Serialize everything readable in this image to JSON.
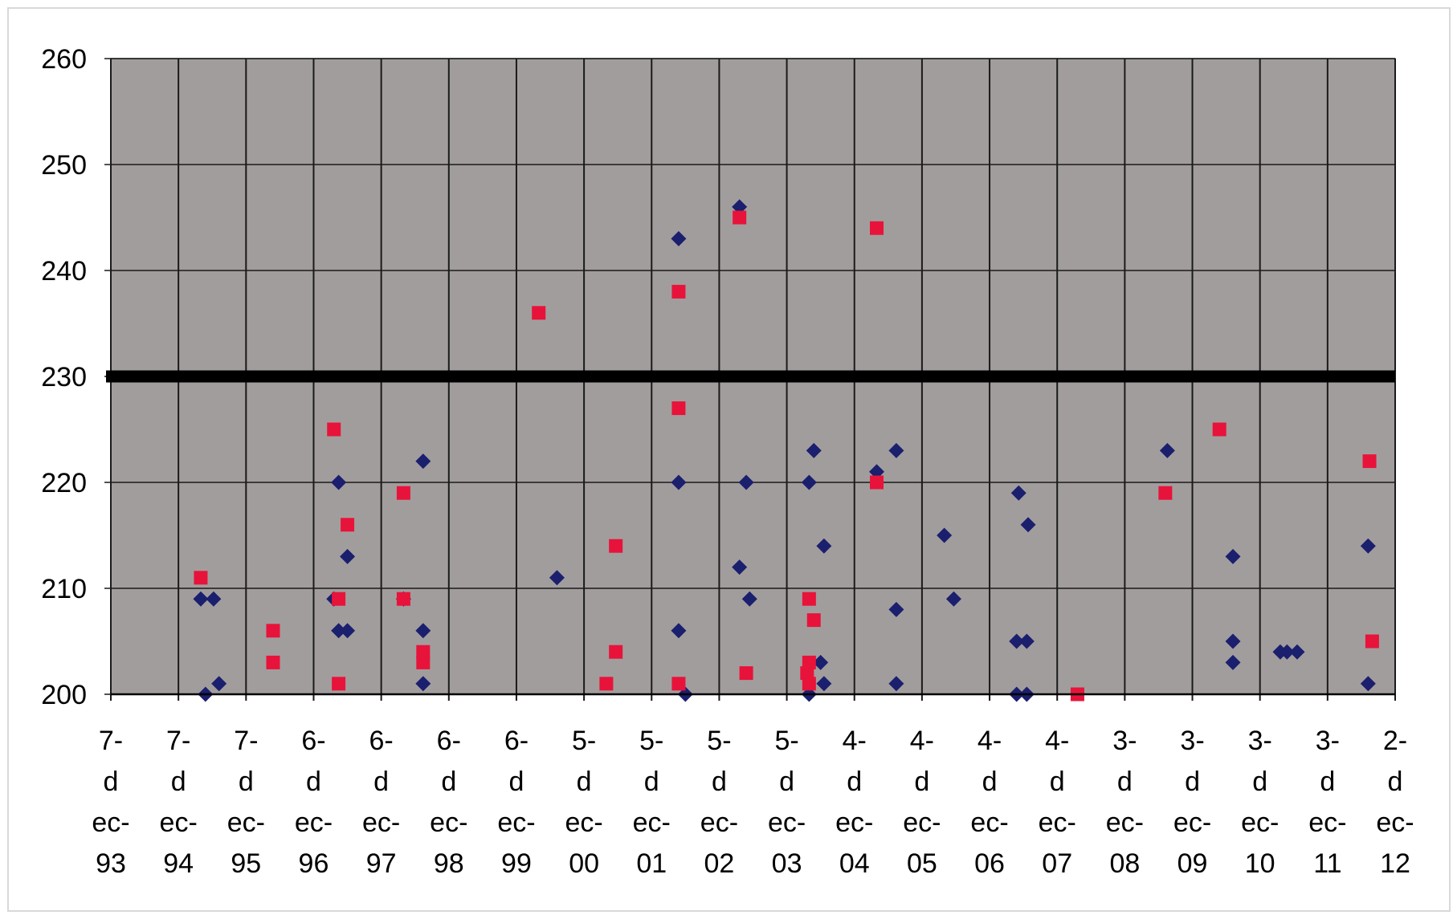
{
  "chart_data": {
    "type": "scatter",
    "title": "",
    "xlabel": "",
    "ylabel": "",
    "ylim": [
      200,
      260
    ],
    "yticks": [
      200,
      210,
      220,
      230,
      240,
      250,
      260
    ],
    "grid": true,
    "legend": "none",
    "plot_background": "#a29d9d",
    "threshold": {
      "value": 230,
      "color": "#000000"
    },
    "x_ticks": [
      {
        "lines": [
          "7-",
          "d",
          "ec-",
          "93"
        ]
      },
      {
        "lines": [
          "7-",
          "d",
          "ec-",
          "94"
        ]
      },
      {
        "lines": [
          "7-",
          "d",
          "ec-",
          "95"
        ]
      },
      {
        "lines": [
          "6-",
          "d",
          "ec-",
          "96"
        ]
      },
      {
        "lines": [
          "6-",
          "d",
          "ec-",
          "97"
        ]
      },
      {
        "lines": [
          "6-",
          "d",
          "ec-",
          "98"
        ]
      },
      {
        "lines": [
          "6-",
          "d",
          "ec-",
          "99"
        ]
      },
      {
        "lines": [
          "5-",
          "d",
          "ec-",
          "00"
        ]
      },
      {
        "lines": [
          "5-",
          "d",
          "ec-",
          "01"
        ]
      },
      {
        "lines": [
          "5-",
          "d",
          "ec-",
          "02"
        ]
      },
      {
        "lines": [
          "5-",
          "d",
          "ec-",
          "03"
        ]
      },
      {
        "lines": [
          "4-",
          "d",
          "ec-",
          "04"
        ]
      },
      {
        "lines": [
          "4-",
          "d",
          "ec-",
          "05"
        ]
      },
      {
        "lines": [
          "4-",
          "d",
          "ec-",
          "06"
        ]
      },
      {
        "lines": [
          "4-",
          "d",
          "ec-",
          "07"
        ]
      },
      {
        "lines": [
          "3-",
          "d",
          "ec-",
          "08"
        ]
      },
      {
        "lines": [
          "3-",
          "d",
          "ec-",
          "09"
        ]
      },
      {
        "lines": [
          "3-",
          "d",
          "ec-",
          "10"
        ]
      },
      {
        "lines": [
          "3-",
          "d",
          "ec-",
          "11"
        ]
      },
      {
        "lines": [
          "2-",
          "d",
          "ec-",
          "12"
        ]
      }
    ],
    "x_note": "x values are in years since the first tick (7-dec-93)",
    "series": [
      {
        "marker": "diamond",
        "color": "#1a1f6e",
        "points": [
          [
            1.33,
            209
          ],
          [
            1.4,
            200
          ],
          [
            1.52,
            209
          ],
          [
            1.6,
            201
          ],
          [
            3.3,
            209
          ],
          [
            3.37,
            220
          ],
          [
            3.37,
            206
          ],
          [
            3.5,
            206
          ],
          [
            3.5,
            213
          ],
          [
            4.33,
            209
          ],
          [
            4.62,
            222
          ],
          [
            4.62,
            206
          ],
          [
            4.62,
            201
          ],
          [
            6.6,
            211
          ],
          [
            8.4,
            243
          ],
          [
            8.4,
            220
          ],
          [
            8.4,
            206
          ],
          [
            8.5,
            200
          ],
          [
            9.3,
            246
          ],
          [
            9.3,
            212
          ],
          [
            9.4,
            220
          ],
          [
            9.45,
            209
          ],
          [
            10.33,
            220
          ],
          [
            10.33,
            200
          ],
          [
            10.4,
            223
          ],
          [
            10.5,
            203
          ],
          [
            10.55,
            214
          ],
          [
            10.55,
            201
          ],
          [
            11.33,
            221
          ],
          [
            11.62,
            223
          ],
          [
            11.62,
            208
          ],
          [
            11.62,
            201
          ],
          [
            12.33,
            215
          ],
          [
            12.47,
            209
          ],
          [
            13.4,
            205
          ],
          [
            13.4,
            200
          ],
          [
            13.43,
            219
          ],
          [
            13.55,
            205
          ],
          [
            13.55,
            200
          ],
          [
            13.57,
            216
          ],
          [
            15.63,
            223
          ],
          [
            16.6,
            213
          ],
          [
            16.6,
            205
          ],
          [
            16.6,
            203
          ],
          [
            17.3,
            204
          ],
          [
            17.4,
            204
          ],
          [
            17.55,
            204
          ],
          [
            18.6,
            214
          ],
          [
            18.6,
            201
          ]
        ]
      },
      {
        "marker": "square",
        "color": "#e8133a",
        "points": [
          [
            1.33,
            211
          ],
          [
            2.4,
            206
          ],
          [
            2.4,
            203
          ],
          [
            3.3,
            225
          ],
          [
            3.37,
            209
          ],
          [
            3.37,
            201
          ],
          [
            3.5,
            216
          ],
          [
            4.33,
            219
          ],
          [
            4.33,
            209
          ],
          [
            4.62,
            204
          ],
          [
            4.62,
            203
          ],
          [
            6.33,
            236
          ],
          [
            7.33,
            201
          ],
          [
            7.47,
            214
          ],
          [
            7.47,
            204
          ],
          [
            8.4,
            238
          ],
          [
            8.4,
            227
          ],
          [
            8.4,
            201
          ],
          [
            9.3,
            245
          ],
          [
            9.4,
            202
          ],
          [
            10.3,
            202
          ],
          [
            10.33,
            209
          ],
          [
            10.33,
            203
          ],
          [
            10.33,
            201
          ],
          [
            10.4,
            207
          ],
          [
            11.33,
            244
          ],
          [
            11.33,
            220
          ],
          [
            14.3,
            200
          ],
          [
            15.6,
            219
          ],
          [
            16.4,
            225
          ],
          [
            18.62,
            222
          ],
          [
            18.66,
            205
          ]
        ]
      }
    ]
  }
}
